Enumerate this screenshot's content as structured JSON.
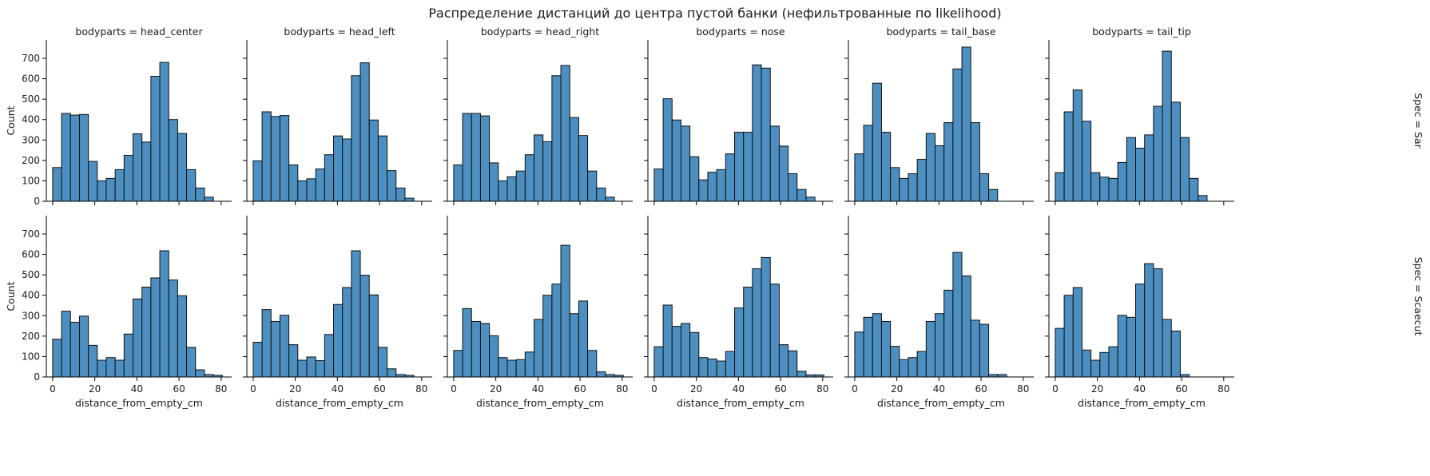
{
  "chart_data": {
    "type": "bar",
    "subtype": "histogram-facet-grid",
    "title": "Распределение дистанций до центра пустой банки (нефильтрованные по likelihood)",
    "xlabel": "distance_from_empty_cm",
    "ylabel": "Count",
    "xlim": [
      -3,
      85
    ],
    "ylim": [
      0,
      790
    ],
    "xticks": [
      0,
      20,
      40,
      60,
      80
    ],
    "yticks": [
      0,
      100,
      200,
      300,
      400,
      500,
      600,
      700
    ],
    "bar_color": "#4c8fc0",
    "edge_color": "#111111",
    "columns": [
      {
        "label": "bodyparts = head_center",
        "edges": [
          0,
          4.24,
          8.48,
          12.72,
          16.96,
          21.2,
          25.44,
          29.68,
          33.92,
          38.16,
          42.4,
          46.64,
          50.88,
          55.12,
          59.36,
          63.6,
          67.84,
          72.08,
          76.32,
          80.56
        ]
      },
      {
        "label": "bodyparts = head_left",
        "edges": [
          0,
          4.24,
          8.48,
          12.72,
          16.96,
          21.2,
          25.44,
          29.68,
          33.92,
          38.16,
          42.4,
          46.64,
          50.88,
          55.12,
          59.36,
          63.6,
          67.84,
          72.08,
          76.32,
          80.56
        ]
      },
      {
        "label": "bodyparts = head_right",
        "edges": [
          0,
          4.24,
          8.48,
          12.72,
          16.96,
          21.2,
          25.44,
          29.68,
          33.92,
          38.16,
          42.4,
          46.64,
          50.88,
          55.12,
          59.36,
          63.6,
          67.84,
          72.08,
          76.32,
          80.56
        ]
      },
      {
        "label": "bodyparts = nose",
        "edges": [
          0,
          4.24,
          8.48,
          12.72,
          16.96,
          21.2,
          25.44,
          29.68,
          33.92,
          38.16,
          42.4,
          46.64,
          50.88,
          55.12,
          59.36,
          63.6,
          67.84,
          72.08,
          76.32,
          80.56
        ]
      },
      {
        "label": "bodyparts = tail_base",
        "edges": [
          0,
          4.24,
          8.48,
          12.72,
          16.96,
          21.2,
          25.44,
          29.68,
          33.92,
          38.16,
          42.4,
          46.64,
          50.88,
          55.12,
          59.36,
          63.6,
          67.84,
          72.08,
          76.32,
          80.56
        ]
      },
      {
        "label": "bodyparts = tail_tip",
        "edges": [
          0,
          4.24,
          8.48,
          12.72,
          16.96,
          21.2,
          25.44,
          29.68,
          33.92,
          38.16,
          42.4,
          46.64,
          50.88,
          55.12,
          59.36,
          63.6,
          67.84,
          72.08,
          76.32,
          80.56
        ]
      }
    ],
    "rows": [
      {
        "label": "Spec = Sar",
        "counts": [
          [
            165,
            430,
            422,
            425,
            195,
            100,
            112,
            155,
            225,
            330,
            290,
            612,
            680,
            400,
            332,
            155,
            65,
            20,
            0
          ],
          [
            198,
            438,
            415,
            420,
            178,
            100,
            110,
            158,
            228,
            320,
            305,
            615,
            678,
            398,
            320,
            150,
            65,
            15,
            0
          ],
          [
            178,
            430,
            430,
            418,
            188,
            100,
            120,
            148,
            228,
            325,
            292,
            615,
            665,
            410,
            322,
            148,
            65,
            20,
            0
          ],
          [
            158,
            502,
            398,
            368,
            218,
            105,
            142,
            155,
            232,
            338,
            338,
            668,
            652,
            368,
            270,
            135,
            58,
            20,
            0
          ],
          [
            232,
            372,
            578,
            338,
            165,
            112,
            135,
            205,
            332,
            272,
            385,
            648,
            755,
            385,
            135,
            58,
            0,
            0,
            0
          ],
          [
            140,
            438,
            545,
            392,
            140,
            118,
            112,
            190,
            312,
            260,
            325,
            465,
            735,
            485,
            312,
            112,
            28,
            0,
            0
          ]
        ]
      },
      {
        "label": "Spec = Scaecut",
        "counts": [
          [
            185,
            322,
            268,
            298,
            155,
            82,
            95,
            82,
            210,
            382,
            440,
            485,
            618,
            475,
            398,
            145,
            35,
            12,
            8
          ],
          [
            170,
            330,
            272,
            302,
            158,
            82,
            98,
            80,
            208,
            355,
            438,
            618,
            498,
            402,
            145,
            40,
            12,
            8,
            0
          ],
          [
            130,
            335,
            272,
            262,
            202,
            95,
            82,
            85,
            122,
            282,
            400,
            455,
            645,
            310,
            372,
            130,
            25,
            12,
            8
          ],
          [
            148,
            352,
            248,
            262,
            218,
            95,
            88,
            78,
            125,
            338,
            440,
            530,
            585,
            455,
            158,
            128,
            28,
            10,
            10
          ],
          [
            220,
            292,
            310,
            272,
            150,
            85,
            95,
            125,
            272,
            310,
            425,
            610,
            495,
            278,
            258,
            12,
            12,
            0,
            0
          ],
          [
            238,
            400,
            438,
            132,
            82,
            120,
            148,
            302,
            292,
            455,
            555,
            530,
            282,
            225,
            12,
            0,
            0,
            0,
            0
          ]
        ]
      }
    ]
  }
}
